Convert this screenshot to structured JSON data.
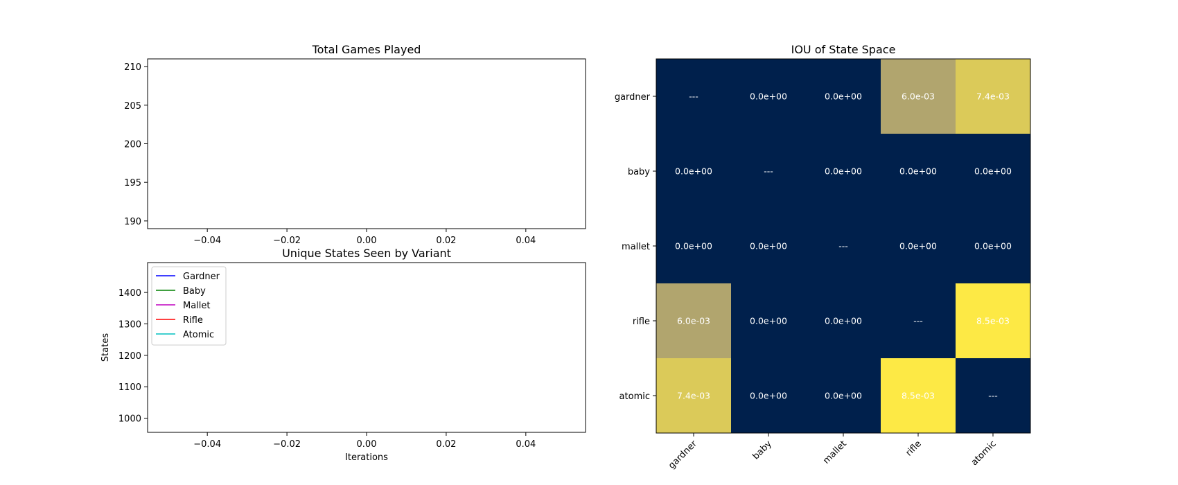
{
  "chart_data": [
    {
      "type": "line",
      "title": "Total Games Played",
      "xlabel": "",
      "ylabel": "",
      "xlim": [
        -0.055,
        0.055
      ],
      "ylim": [
        189,
        211
      ],
      "xticks": [
        -0.04,
        -0.02,
        0.0,
        0.02,
        0.04
      ],
      "xtick_labels": [
        "−0.04",
        "−0.02",
        "0.00",
        "0.02",
        "0.04"
      ],
      "yticks": [
        190,
        195,
        200,
        205,
        210
      ],
      "ytick_labels": [
        "190",
        "195",
        "200",
        "205",
        "210"
      ],
      "series": []
    },
    {
      "type": "line",
      "title": "Unique States Seen by Variant",
      "xlabel": "Iterations",
      "ylabel": "States",
      "xlim": [
        -0.055,
        0.055
      ],
      "ylim": [
        955,
        1495
      ],
      "xticks": [
        -0.04,
        -0.02,
        0.0,
        0.02,
        0.04
      ],
      "xtick_labels": [
        "−0.04",
        "−0.02",
        "0.00",
        "0.02",
        "0.04"
      ],
      "yticks": [
        1000,
        1100,
        1200,
        1300,
        1400
      ],
      "ytick_labels": [
        "1000",
        "1100",
        "1200",
        "1300",
        "1400"
      ],
      "legend_position": "upper-left",
      "series": [
        {
          "name": "Gardner",
          "color": "#0000ff",
          "values": []
        },
        {
          "name": "Baby",
          "color": "#008000",
          "values": []
        },
        {
          "name": "Mallet",
          "color": "#bf00bf",
          "values": []
        },
        {
          "name": "Rifle",
          "color": "#ff0000",
          "values": []
        },
        {
          "name": "Atomic",
          "color": "#00bfbf",
          "values": []
        }
      ]
    },
    {
      "type": "heatmap",
      "title": "IOU of State Space",
      "rows": [
        "gardner",
        "baby",
        "mallet",
        "rifle",
        "atomic"
      ],
      "cols": [
        "gardner",
        "baby",
        "mallet",
        "rifle",
        "atomic"
      ],
      "values": [
        [
          null,
          0.0,
          0.0,
          0.006,
          0.0074
        ],
        [
          0.0,
          null,
          0.0,
          0.0,
          0.0
        ],
        [
          0.0,
          0.0,
          null,
          0.0,
          0.0
        ],
        [
          0.006,
          0.0,
          0.0,
          null,
          0.0085
        ],
        [
          0.0074,
          0.0,
          0.0,
          0.0085,
          null
        ]
      ],
      "labels": [
        [
          "---",
          "0.0e+00",
          "0.0e+00",
          "6.0e-03",
          "7.4e-03"
        ],
        [
          "0.0e+00",
          "---",
          "0.0e+00",
          "0.0e+00",
          "0.0e+00"
        ],
        [
          "0.0e+00",
          "0.0e+00",
          "---",
          "0.0e+00",
          "0.0e+00"
        ],
        [
          "6.0e-03",
          "0.0e+00",
          "0.0e+00",
          "---",
          "8.5e-03"
        ],
        [
          "7.4e-03",
          "0.0e+00",
          "0.0e+00",
          "8.5e-03",
          "---"
        ]
      ],
      "colormap": "cividis",
      "vmin": 0.0,
      "vmax": 0.0085
    }
  ]
}
